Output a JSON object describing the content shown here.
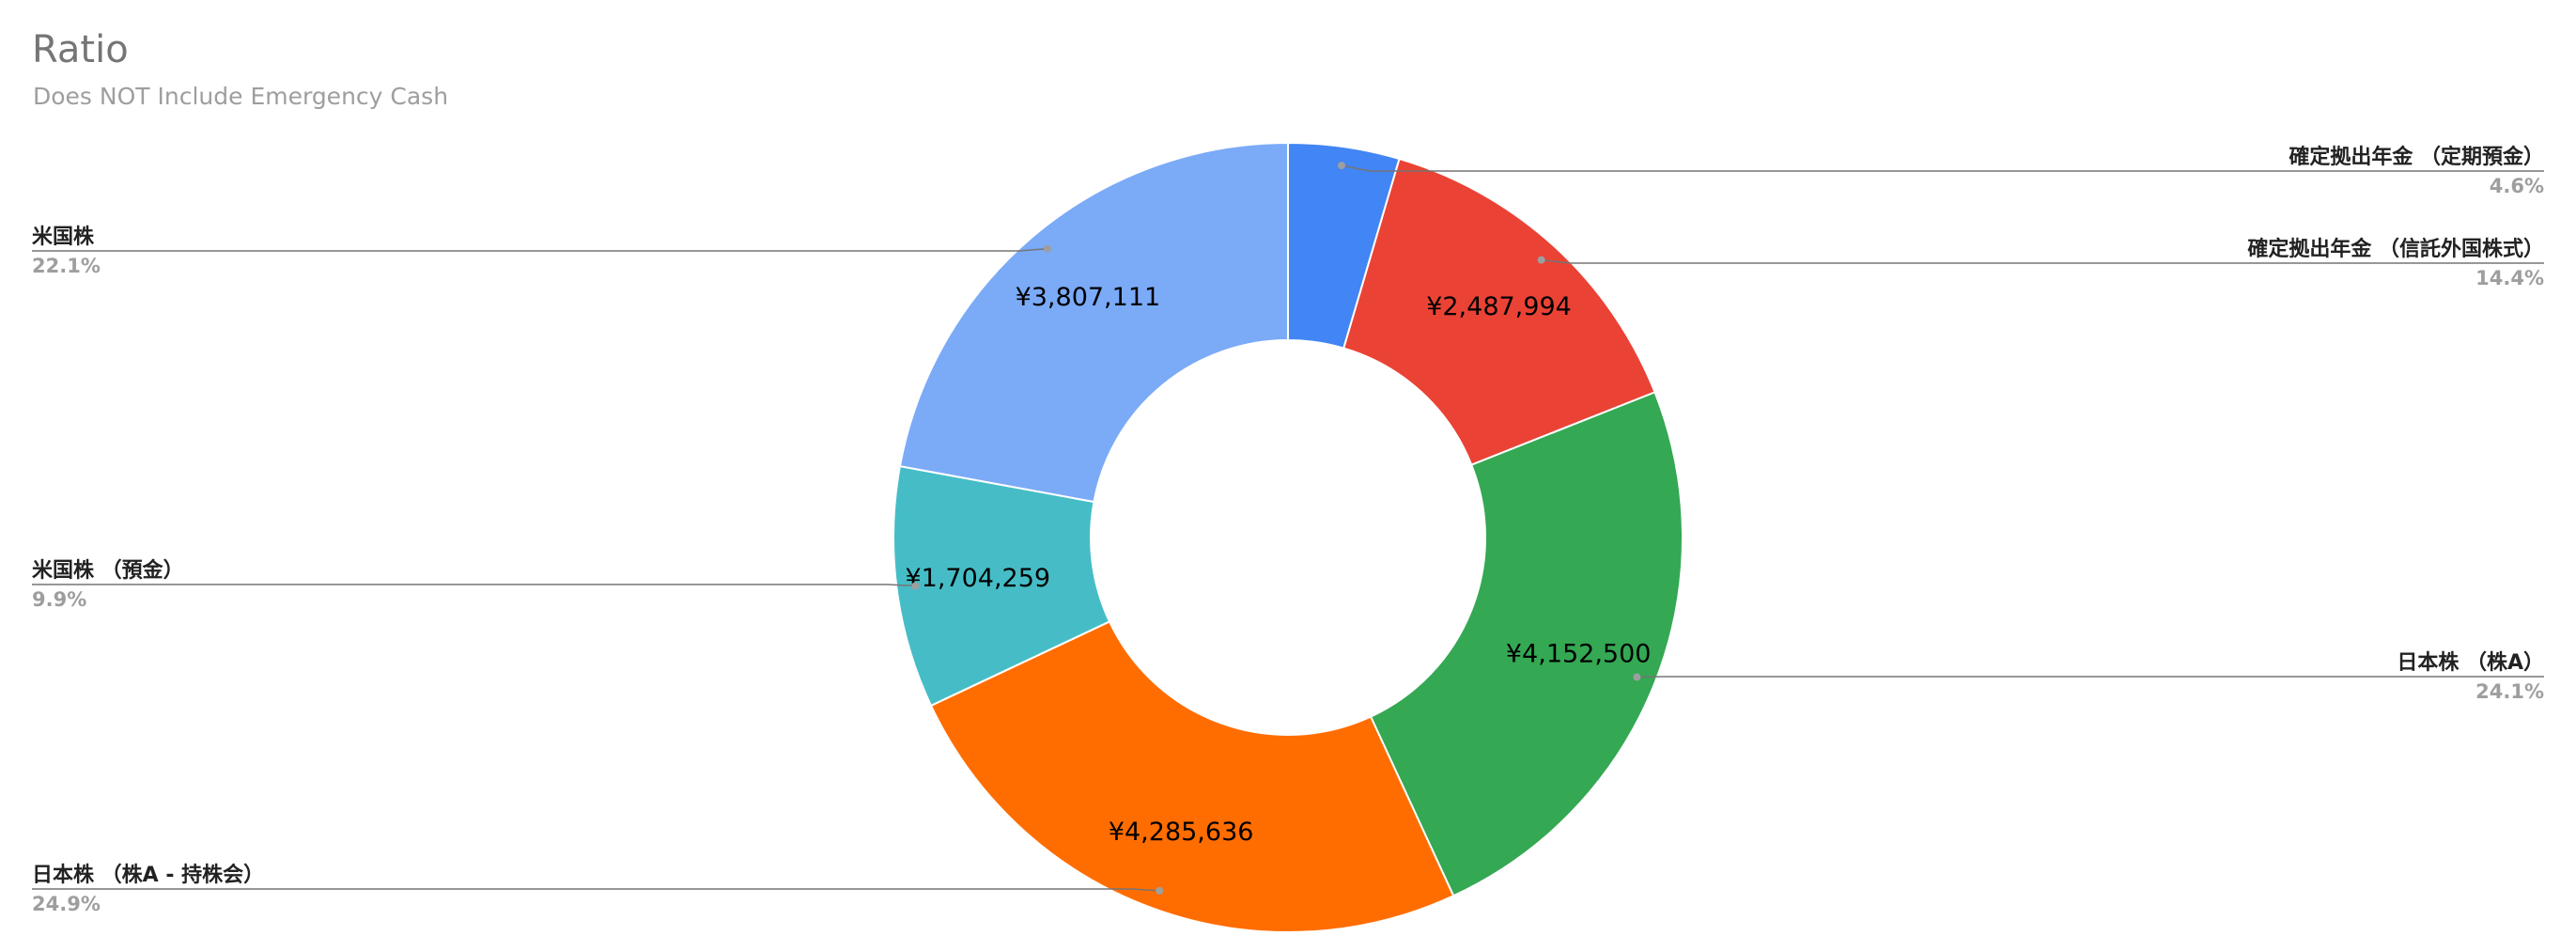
{
  "chart_data": {
    "type": "pie",
    "donut": true,
    "title": "Ratio",
    "subtitle": "Does NOT Include Emergency Cash",
    "slices": [
      {
        "label": "確定拠出年金 （定期預金）",
        "value": 784000,
        "value_label": "",
        "percent_label": "4.6%",
        "color": "#4285f4"
      },
      {
        "label": "確定拠出年金 （信託外国株式）",
        "value": 2487994,
        "value_label": "¥2,487,994",
        "percent_label": "14.4%",
        "color": "#ea4335"
      },
      {
        "label": "日本株 （株A）",
        "value": 4152500,
        "value_label": "¥4,152,500",
        "percent_label": "24.1%",
        "color": "#34a853"
      },
      {
        "label": "日本株 （株A - 持株会）",
        "value": 4285636,
        "value_label": "¥4,285,636",
        "percent_label": "24.9%",
        "color": "#ff6d01"
      },
      {
        "label": "米国株 （預金）",
        "value": 1704259,
        "value_label": "¥1,704,259",
        "percent_label": "9.9%",
        "color": "#46bdc6"
      },
      {
        "label": "米国株",
        "value": 3807111,
        "value_label": "¥3,807,111",
        "percent_label": "22.1%",
        "color": "#7baaf7"
      }
    ]
  }
}
